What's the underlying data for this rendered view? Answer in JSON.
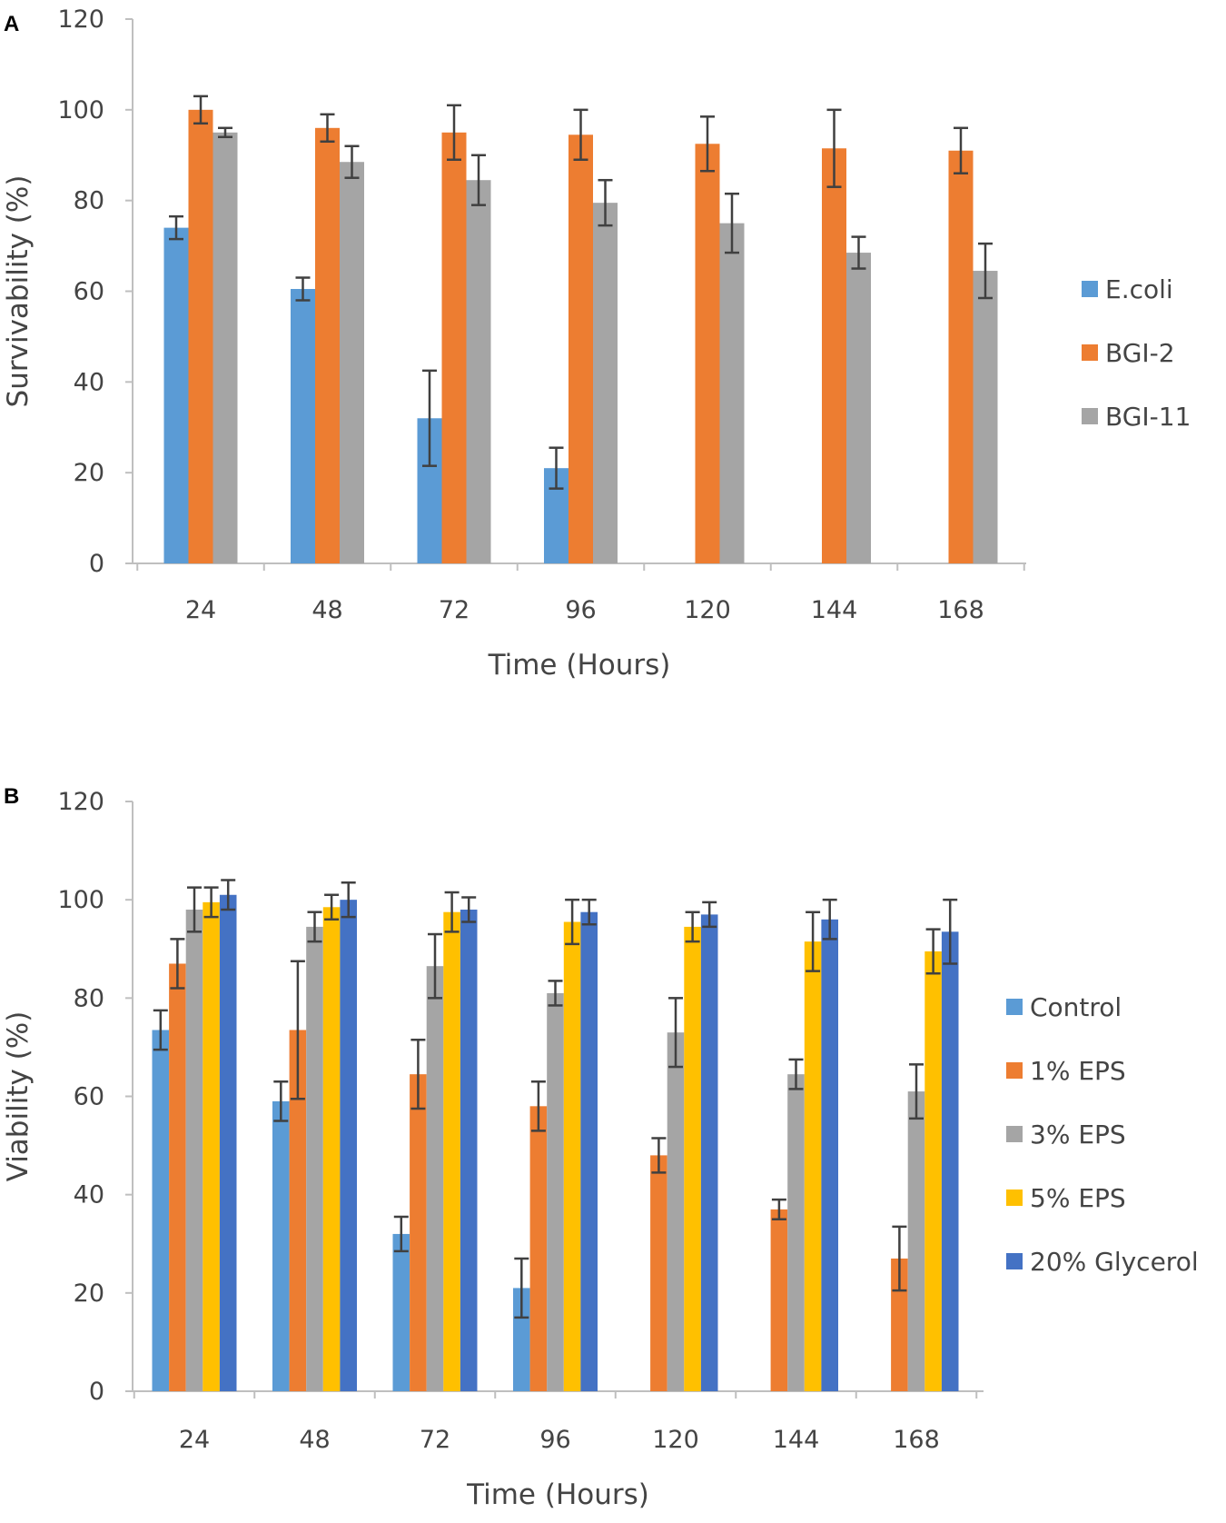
{
  "chart_data": [
    {
      "panel": "A",
      "type": "bar",
      "title": "",
      "xlabel": "Time (Hours)",
      "ylabel": "Survivability (%)",
      "ylim": [
        0,
        120
      ],
      "yticks": [
        0,
        20,
        40,
        60,
        80,
        100,
        120
      ],
      "categories": [
        "24",
        "48",
        "72",
        "96",
        "120",
        "144",
        "168"
      ],
      "legend_position": "right",
      "series": [
        {
          "name": "E.coli",
          "color": "#5b9bd5",
          "values": [
            74,
            60.5,
            32,
            21,
            null,
            null,
            null
          ],
          "errors": [
            2.5,
            2.5,
            10.5,
            4.5,
            null,
            null,
            null
          ]
        },
        {
          "name": "BGI-2",
          "color": "#ed7d31",
          "values": [
            100,
            96,
            95,
            94.5,
            92.5,
            91.5,
            91
          ],
          "errors": [
            3,
            3,
            6,
            5.5,
            6,
            8.5,
            5
          ]
        },
        {
          "name": "BGI-11",
          "color": "#a5a5a5",
          "values": [
            95,
            88.5,
            84.5,
            79.5,
            75,
            68.5,
            64.5
          ],
          "errors": [
            1,
            3.5,
            5.5,
            5,
            6.5,
            3.5,
            6
          ]
        }
      ]
    },
    {
      "panel": "B",
      "type": "bar",
      "title": "",
      "xlabel": "Time (Hours)",
      "ylabel": "Viability (%)",
      "ylim": [
        0,
        120
      ],
      "yticks": [
        0,
        20,
        40,
        60,
        80,
        100,
        120
      ],
      "categories": [
        "24",
        "48",
        "72",
        "96",
        "120",
        "144",
        "168"
      ],
      "legend_position": "right",
      "series": [
        {
          "name": "Control",
          "color": "#5b9bd5",
          "values": [
            73.5,
            59,
            32,
            21,
            null,
            null,
            null
          ],
          "errors": [
            4,
            4,
            3.5,
            6,
            null,
            null,
            null
          ]
        },
        {
          "name": "1% EPS",
          "color": "#ed7d31",
          "values": [
            87,
            73.5,
            64.5,
            58,
            48,
            37,
            27
          ],
          "errors": [
            5,
            14,
            7,
            5,
            3.5,
            2,
            6.5
          ]
        },
        {
          "name": "3% EPS",
          "color": "#a5a5a5",
          "values": [
            98,
            94.5,
            86.5,
            81,
            73,
            64.5,
            61
          ],
          "errors": [
            4.5,
            3,
            6.5,
            2.5,
            7,
            3,
            5.5
          ]
        },
        {
          "name": "5% EPS",
          "color": "#ffc000",
          "values": [
            99.5,
            98.5,
            97.5,
            95.5,
            94.5,
            91.5,
            89.5
          ],
          "errors": [
            3,
            2.5,
            4,
            4.5,
            3,
            6,
            4.5
          ]
        },
        {
          "name": "20% Glycerol",
          "color": "#4472c4",
          "values": [
            101,
            100,
            98,
            97.5,
            97,
            96,
            93.5
          ],
          "errors": [
            3,
            3.5,
            2.5,
            2.5,
            2.5,
            4,
            6.5
          ]
        }
      ]
    }
  ]
}
